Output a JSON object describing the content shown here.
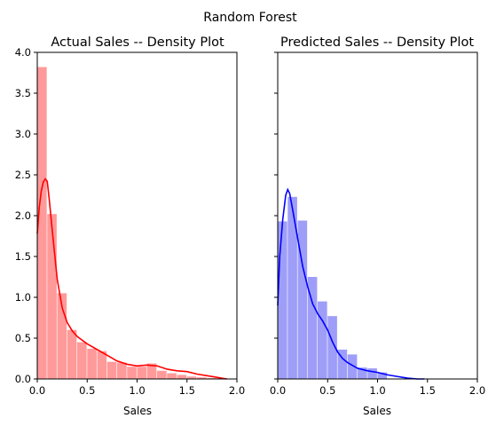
{
  "figure": {
    "suptitle": "Random Forest"
  },
  "chart_data": [
    {
      "type": "bar",
      "overlay": "kde-line",
      "title": "Actual Sales -- Density Plot",
      "xlabel": "Sales",
      "ylabel": "",
      "xlim": [
        0,
        2.0
      ],
      "ylim": [
        0,
        4.0
      ],
      "xticks": [
        "0.0",
        "0.5",
        "1.0",
        "1.5",
        "2.0"
      ],
      "yticks": [
        "0.0",
        "0.5",
        "1.0",
        "1.5",
        "2.0",
        "2.5",
        "3.0",
        "3.5",
        "4.0"
      ],
      "bar_color": "#ff9a9a",
      "line_color": "#ff0000",
      "histogram": {
        "bin_edges": [
          0.0,
          0.1,
          0.2,
          0.3,
          0.4,
          0.5,
          0.6,
          0.7,
          0.8,
          0.9,
          1.0,
          1.1,
          1.2,
          1.3,
          1.4,
          1.5,
          1.6,
          1.7,
          1.8,
          1.9
        ],
        "density": [
          3.82,
          2.02,
          1.05,
          0.6,
          0.45,
          0.37,
          0.34,
          0.21,
          0.2,
          0.15,
          0.15,
          0.19,
          0.1,
          0.07,
          0.05,
          0.03,
          0.02,
          0.01,
          0.01
        ]
      },
      "kde": {
        "x": [
          0.0,
          0.02,
          0.04,
          0.06,
          0.08,
          0.1,
          0.12,
          0.15,
          0.2,
          0.25,
          0.3,
          0.35,
          0.4,
          0.5,
          0.6,
          0.7,
          0.8,
          0.9,
          1.0,
          1.1,
          1.2,
          1.3,
          1.4,
          1.5,
          1.6,
          1.7,
          1.8,
          1.9
        ],
        "y": [
          1.78,
          2.1,
          2.3,
          2.41,
          2.45,
          2.42,
          2.2,
          1.82,
          1.22,
          0.87,
          0.69,
          0.59,
          0.52,
          0.43,
          0.36,
          0.29,
          0.22,
          0.18,
          0.16,
          0.17,
          0.16,
          0.12,
          0.1,
          0.09,
          0.06,
          0.04,
          0.02,
          0.0
        ]
      }
    },
    {
      "type": "bar",
      "overlay": "kde-line",
      "title": "Predicted Sales -- Density Plot",
      "xlabel": "Sales",
      "ylabel": "",
      "xlim": [
        0,
        2.0
      ],
      "ylim": [
        0,
        4.0
      ],
      "xticks": [
        "0.0",
        "0.5",
        "1.0",
        "1.5",
        "2.0"
      ],
      "yticks": [],
      "bar_color": "#9e9ef9",
      "line_color": "#0000ff",
      "histogram": {
        "bin_edges": [
          0.0,
          0.1,
          0.2,
          0.3,
          0.4,
          0.5,
          0.6,
          0.7,
          0.8,
          0.9,
          1.0,
          1.1
        ],
        "density": [
          1.93,
          2.23,
          1.94,
          1.25,
          0.95,
          0.77,
          0.36,
          0.3,
          0.14,
          0.13,
          0.08
        ]
      },
      "kde": {
        "x": [
          0.0,
          0.02,
          0.05,
          0.08,
          0.1,
          0.12,
          0.15,
          0.2,
          0.25,
          0.3,
          0.35,
          0.4,
          0.45,
          0.5,
          0.55,
          0.6,
          0.65,
          0.7,
          0.8,
          0.9,
          1.0,
          1.1,
          1.2,
          1.3,
          1.4,
          1.47
        ],
        "y": [
          0.9,
          1.5,
          1.95,
          2.25,
          2.32,
          2.27,
          2.07,
          1.72,
          1.38,
          1.13,
          0.92,
          0.8,
          0.71,
          0.6,
          0.45,
          0.33,
          0.25,
          0.2,
          0.13,
          0.1,
          0.08,
          0.05,
          0.03,
          0.01,
          0.0,
          0.0
        ]
      }
    }
  ]
}
